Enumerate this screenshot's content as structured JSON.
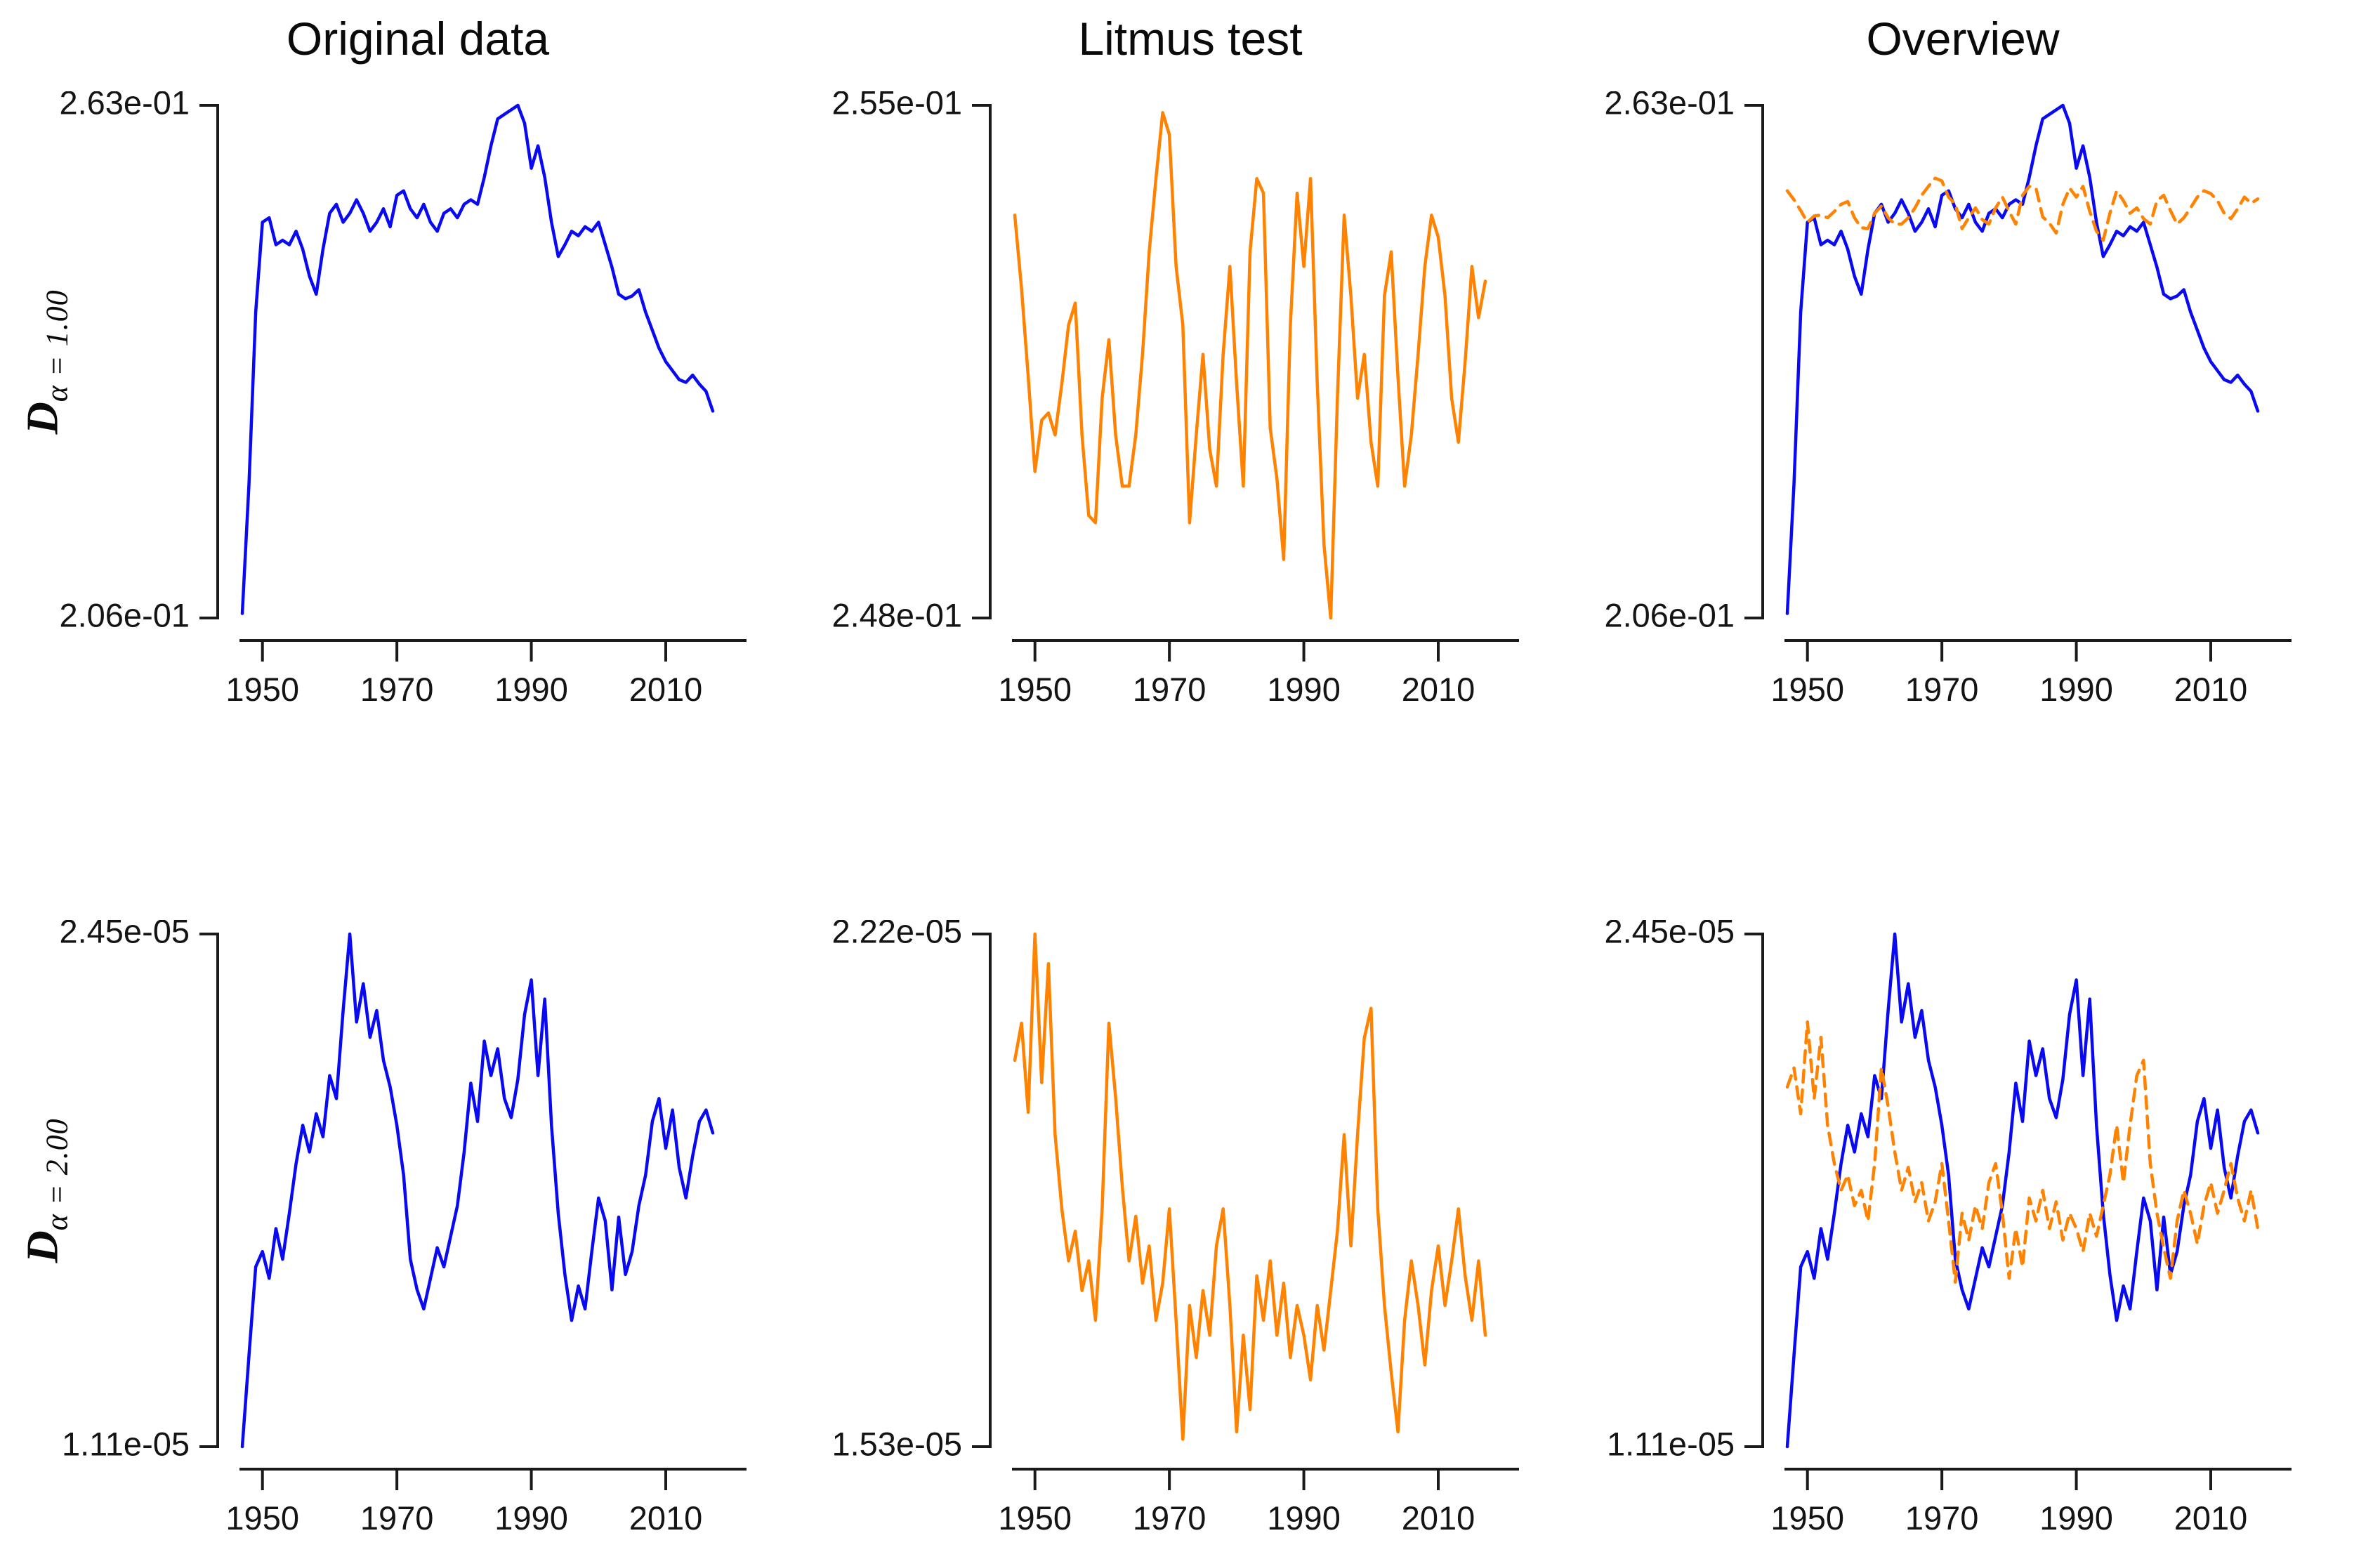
{
  "figure": {
    "column_titles": [
      "Original data",
      "Litmus test",
      "Overview"
    ],
    "row_labels": [
      {
        "base": "D",
        "subscript": "α = 1.00"
      },
      {
        "base": "D",
        "subscript": "α = 2.00"
      }
    ],
    "colors": {
      "original_series": "#0a0af2",
      "litmus_series": "#ff8300",
      "axis": "#1a1a1a",
      "background": "#ffffff"
    }
  },
  "chart_data": [
    {
      "id": "d1-original",
      "type": "line",
      "grid": {
        "row": 0,
        "col": 0
      },
      "column_title": "Original data",
      "y_axis": {
        "top_label": "2.63e-01",
        "bottom_label": "2.06e-01",
        "min": 2.06,
        "max": 2.63,
        "unit_suffix": "e-01"
      },
      "x_axis": {
        "range": [
          1947,
          2017
        ],
        "axis_span": [
          1946,
          2019
        ],
        "ticks": [
          1950,
          1970,
          1990,
          2010
        ],
        "tick_labels": [
          "1950",
          "1970",
          "1990",
          "2010"
        ]
      },
      "series": [
        {
          "name": "original",
          "color_key": "original_series",
          "dash": false,
          "x_start": 1947,
          "x_step": 1,
          "values": [
            2.065,
            2.21,
            2.4,
            2.5,
            2.505,
            2.475,
            2.48,
            2.475,
            2.49,
            2.47,
            2.44,
            2.42,
            2.47,
            2.51,
            2.52,
            2.5,
            2.51,
            2.525,
            2.51,
            2.49,
            2.5,
            2.515,
            2.495,
            2.53,
            2.535,
            2.515,
            2.505,
            2.52,
            2.5,
            2.49,
            2.51,
            2.515,
            2.505,
            2.52,
            2.525,
            2.52,
            2.55,
            2.585,
            2.615,
            2.62,
            2.625,
            2.63,
            2.61,
            2.56,
            2.585,
            2.55,
            2.5,
            2.462,
            2.475,
            2.49,
            2.485,
            2.495,
            2.49,
            2.5,
            2.475,
            2.45,
            2.42,
            2.415,
            2.418,
            2.425,
            2.4,
            2.38,
            2.36,
            2.345,
            2.335,
            2.325,
            2.322,
            2.33,
            2.32,
            2.312,
            2.29
          ]
        }
      ]
    },
    {
      "id": "d1-litmus",
      "type": "line",
      "grid": {
        "row": 0,
        "col": 1
      },
      "column_title": "Litmus test",
      "y_axis": {
        "top_label": "2.55e-01",
        "bottom_label": "2.48e-01",
        "min": 2.48,
        "max": 2.55,
        "unit_suffix": "e-01"
      },
      "x_axis": {
        "range": [
          1947,
          2017
        ],
        "axis_span": [
          1946,
          2019
        ],
        "ticks": [
          1950,
          1970,
          1990,
          2010
        ],
        "tick_labels": [
          "1950",
          "1970",
          "1990",
          "2010"
        ]
      },
      "series": [
        {
          "name": "litmus",
          "color_key": "litmus_series",
          "dash": false,
          "x_start": 1947,
          "x_step": 1,
          "values": [
            2.535,
            2.525,
            2.513,
            2.5,
            2.507,
            2.508,
            2.505,
            2.512,
            2.52,
            2.523,
            2.505,
            2.494,
            2.493,
            2.51,
            2.518,
            2.505,
            2.498,
            2.498,
            2.505,
            2.516,
            2.53,
            2.54,
            2.549,
            2.546,
            2.528,
            2.52,
            2.493,
            2.505,
            2.516,
            2.503,
            2.498,
            2.516,
            2.528,
            2.512,
            2.498,
            2.53,
            2.54,
            2.538,
            2.506,
            2.499,
            2.488,
            2.52,
            2.538,
            2.528,
            2.54,
            2.512,
            2.49,
            2.48,
            2.51,
            2.535,
            2.524,
            2.51,
            2.516,
            2.504,
            2.498,
            2.524,
            2.53,
            2.513,
            2.498,
            2.505,
            2.516,
            2.528,
            2.535,
            2.532,
            2.524,
            2.51,
            2.504,
            2.515,
            2.528,
            2.521,
            2.526
          ]
        }
      ]
    },
    {
      "id": "d1-overview",
      "type": "line",
      "grid": {
        "row": 0,
        "col": 2
      },
      "column_title": "Overview",
      "y_axis": {
        "top_label": "2.63e-01",
        "bottom_label": "2.06e-01",
        "min": 2.06,
        "max": 2.63,
        "unit_suffix": "e-01"
      },
      "x_axis": {
        "range": [
          1947,
          2017
        ],
        "axis_span": [
          1946,
          2019
        ],
        "ticks": [
          1950,
          1970,
          1990,
          2010
        ],
        "tick_labels": [
          "1950",
          "1970",
          "1990",
          "2010"
        ]
      },
      "series": [
        {
          "name": "original",
          "color_key": "original_series",
          "dash": false,
          "source": {
            "chart": 0,
            "series": 0
          }
        },
        {
          "name": "litmus",
          "color_key": "litmus_series",
          "dash": true,
          "source": {
            "chart": 1,
            "series": 0
          }
        }
      ]
    },
    {
      "id": "d2-original",
      "type": "line",
      "grid": {
        "row": 1,
        "col": 0
      },
      "column_title": "Original data",
      "y_axis": {
        "top_label": "2.45e-05",
        "bottom_label": "1.11e-05",
        "min": 1.11,
        "max": 2.45,
        "unit_suffix": "e-05"
      },
      "x_axis": {
        "range": [
          1947,
          2017
        ],
        "axis_span": [
          1946,
          2019
        ],
        "ticks": [
          1950,
          1970,
          1990,
          2010
        ],
        "tick_labels": [
          "1950",
          "1970",
          "1990",
          "2010"
        ]
      },
      "series": [
        {
          "name": "original",
          "color_key": "original_series",
          "dash": false,
          "x_start": 1947,
          "x_step": 1,
          "values": [
            1.11,
            1.35,
            1.58,
            1.62,
            1.55,
            1.68,
            1.6,
            1.72,
            1.85,
            1.95,
            1.88,
            1.98,
            1.92,
            2.08,
            2.02,
            2.25,
            2.45,
            2.22,
            2.32,
            2.18,
            2.25,
            2.12,
            2.05,
            1.95,
            1.82,
            1.6,
            1.52,
            1.47,
            1.55,
            1.63,
            1.58,
            1.66,
            1.74,
            1.88,
            2.06,
            1.96,
            2.17,
            2.08,
            2.15,
            2.02,
            1.97,
            2.07,
            2.24,
            2.33,
            2.08,
            2.28,
            1.95,
            1.72,
            1.56,
            1.44,
            1.53,
            1.47,
            1.62,
            1.76,
            1.7,
            1.52,
            1.71,
            1.56,
            1.62,
            1.74,
            1.82,
            1.96,
            2.02,
            1.89,
            1.99,
            1.84,
            1.76,
            1.87,
            1.96,
            1.99,
            1.93
          ]
        }
      ]
    },
    {
      "id": "d2-litmus",
      "type": "line",
      "grid": {
        "row": 1,
        "col": 1
      },
      "column_title": "Litmus test",
      "y_axis": {
        "top_label": "2.22e-05",
        "bottom_label": "1.53e-05",
        "min": 1.53,
        "max": 2.22,
        "unit_suffix": "e-05"
      },
      "x_axis": {
        "range": [
          1947,
          2017
        ],
        "axis_span": [
          1946,
          2019
        ],
        "ticks": [
          1950,
          1970,
          1990,
          2010
        ],
        "tick_labels": [
          "1950",
          "1970",
          "1990",
          "2010"
        ]
      },
      "series": [
        {
          "name": "litmus",
          "color_key": "litmus_series",
          "dash": false,
          "x_start": 1947,
          "x_step": 1,
          "values": [
            2.05,
            2.1,
            1.98,
            2.22,
            2.02,
            2.18,
            1.95,
            1.85,
            1.78,
            1.82,
            1.74,
            1.78,
            1.7,
            1.85,
            2.1,
            2.0,
            1.88,
            1.78,
            1.84,
            1.75,
            1.8,
            1.7,
            1.75,
            1.85,
            1.7,
            1.54,
            1.72,
            1.65,
            1.74,
            1.68,
            1.8,
            1.85,
            1.72,
            1.55,
            1.68,
            1.58,
            1.76,
            1.7,
            1.78,
            1.68,
            1.75,
            1.65,
            1.72,
            1.68,
            1.62,
            1.72,
            1.66,
            1.74,
            1.82,
            1.95,
            1.8,
            1.95,
            2.08,
            2.12,
            1.85,
            1.72,
            1.63,
            1.55,
            1.7,
            1.78,
            1.72,
            1.64,
            1.74,
            1.8,
            1.72,
            1.78,
            1.85,
            1.76,
            1.7,
            1.78,
            1.68
          ]
        }
      ]
    },
    {
      "id": "d2-overview",
      "type": "line",
      "grid": {
        "row": 1,
        "col": 2
      },
      "column_title": "Overview",
      "y_axis": {
        "top_label": "2.45e-05",
        "bottom_label": "1.11e-05",
        "min": 1.11,
        "max": 2.45,
        "unit_suffix": "e-05"
      },
      "x_axis": {
        "range": [
          1947,
          2017
        ],
        "axis_span": [
          1946,
          2019
        ],
        "ticks": [
          1950,
          1970,
          1990,
          2010
        ],
        "tick_labels": [
          "1950",
          "1970",
          "1990",
          "2010"
        ]
      },
      "series": [
        {
          "name": "original",
          "color_key": "original_series",
          "dash": false,
          "source": {
            "chart": 3,
            "series": 0
          }
        },
        {
          "name": "litmus",
          "color_key": "litmus_series",
          "dash": true,
          "source": {
            "chart": 4,
            "series": 0
          }
        }
      ]
    }
  ]
}
